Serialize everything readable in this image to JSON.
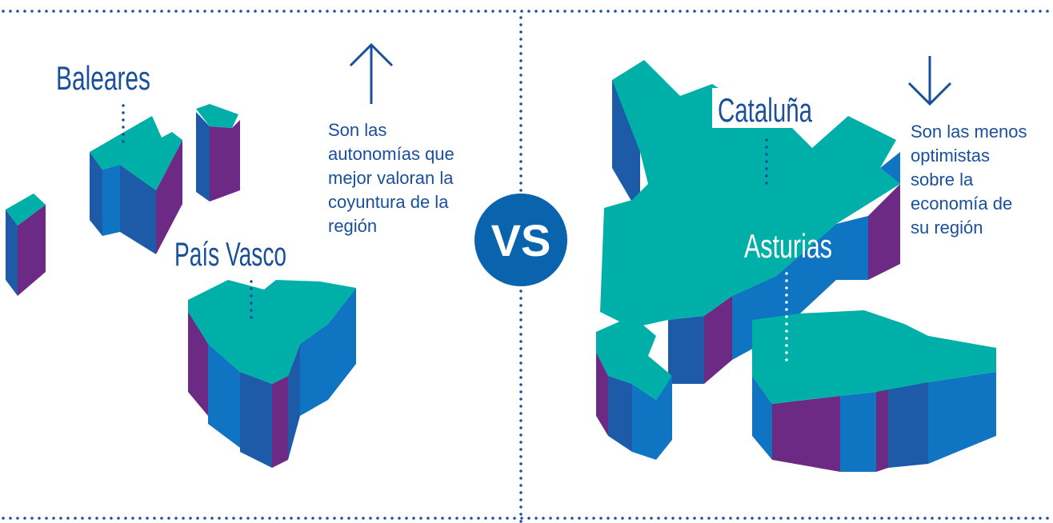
{
  "left": {
    "regions": [
      "Baleares",
      "País Vasco"
    ],
    "note": [
      "Son las",
      "autonomías que",
      "mejor valoran la",
      "coyuntura de la",
      "región"
    ]
  },
  "center": {
    "label": "VS"
  },
  "right": {
    "regions": [
      "Cataluña",
      "Asturias"
    ],
    "note": [
      "Son las menos",
      "optimistas",
      "sobre la",
      "economía de",
      "su región"
    ]
  }
}
